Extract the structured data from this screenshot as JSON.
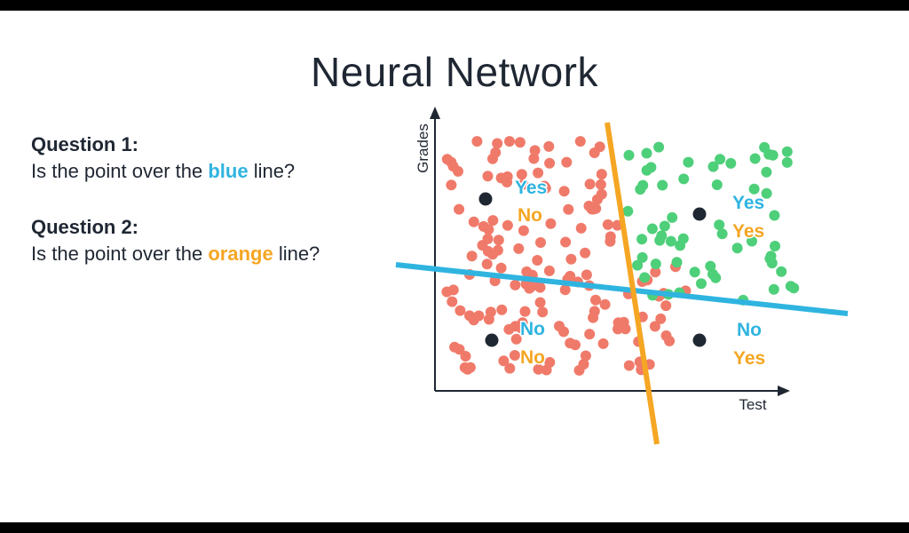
{
  "title": "Neural Network",
  "question1": {
    "heading": "Question 1:",
    "prefix": "Is the point over the ",
    "highlight": "blue",
    "suffix": " line?"
  },
  "question2": {
    "heading": "Question 2:",
    "prefix": "Is the point over the ",
    "highlight": "orange",
    "suffix": " line?"
  },
  "axes": {
    "y_label": "Grades",
    "x_label": "Test"
  },
  "colors": {
    "title_text": "#1f2733",
    "blue_line": "#2fb4e0",
    "orange_line": "#f5a623",
    "red_points": "#f07a6a",
    "green_points": "#4ecf7a",
    "query_points": "#1f2733"
  },
  "answers": {
    "top_left": {
      "blue": "Yes",
      "orange": "No"
    },
    "top_right": {
      "blue": "Yes",
      "orange": "Yes"
    },
    "bottom_left": {
      "blue": "No",
      "orange": "No"
    },
    "bottom_right": {
      "blue": "No",
      "orange": "Yes"
    }
  }
}
